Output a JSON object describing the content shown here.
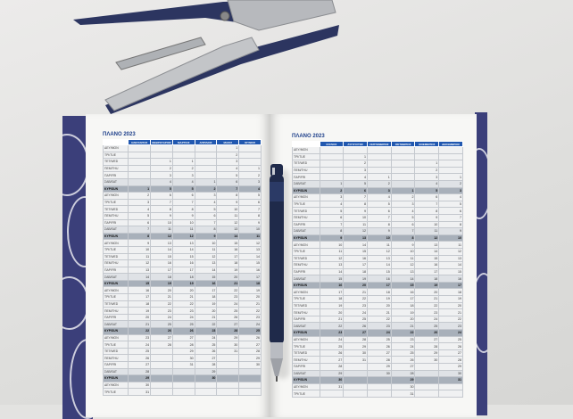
{
  "planner": {
    "left_title": "ΠΛΑΝΟ 2023",
    "right_title": "ΠΛΑΝΟ 2023",
    "day_labels": [
      "ΔΕΥ/MON",
      "ΤΡΙ/TUE",
      "ΤΕΤ/WED",
      "ΠΕΜ/THU",
      "ΠΑΡ/FRI",
      "ΣΑΒ/SAT",
      "ΚΥΡ/SUN"
    ],
    "left_months": [
      {
        "name": "ΙΑΝΟΥΑΡΙΟΣ",
        "days": [
          null,
          null,
          null,
          null,
          null,
          null,
          1,
          2,
          3,
          4,
          5,
          6,
          7,
          8,
          9,
          10,
          11,
          12,
          13,
          14,
          15,
          16,
          17,
          18,
          19,
          20,
          21,
          22,
          23,
          24,
          25,
          26,
          27,
          28,
          29,
          30,
          31
        ]
      },
      {
        "name": "ΦΕΒΡΟΥΑΡΙΟΣ",
        "days": [
          null,
          null,
          1,
          2,
          3,
          4,
          5,
          6,
          7,
          8,
          9,
          10,
          11,
          12,
          13,
          14,
          15,
          16,
          17,
          18,
          19,
          20,
          21,
          22,
          23,
          24,
          25,
          26,
          27,
          28
        ]
      },
      {
        "name": "ΜΑΡΤΙΟΣ",
        "days": [
          null,
          null,
          1,
          2,
          3,
          4,
          5,
          6,
          7,
          8,
          9,
          10,
          11,
          12,
          13,
          14,
          15,
          16,
          17,
          18,
          19,
          20,
          21,
          22,
          23,
          24,
          25,
          26,
          27,
          28,
          29,
          30,
          31
        ]
      },
      {
        "name": "ΑΠΡΙΛΙΟΣ",
        "days": [
          null,
          null,
          null,
          null,
          null,
          1,
          2,
          3,
          4,
          5,
          6,
          7,
          8,
          9,
          10,
          11,
          12,
          13,
          14,
          15,
          16,
          17,
          18,
          19,
          20,
          21,
          22,
          23,
          24,
          25,
          26,
          27,
          28,
          29,
          30
        ]
      },
      {
        "name": "ΜΑΙΟΣ",
        "days": [
          1,
          2,
          3,
          4,
          5,
          6,
          7,
          8,
          9,
          10,
          11,
          12,
          13,
          14,
          15,
          16,
          17,
          18,
          19,
          20,
          21,
          22,
          23,
          24,
          25,
          26,
          27,
          28,
          29,
          30,
          31
        ]
      },
      {
        "name": "ΙΟΥΝΙΟΣ",
        "days": [
          null,
          null,
          null,
          1,
          2,
          3,
          4,
          5,
          6,
          7,
          8,
          9,
          10,
          11,
          12,
          13,
          14,
          15,
          16,
          17,
          18,
          19,
          20,
          21,
          22,
          23,
          24,
          25,
          26,
          27,
          28,
          29,
          30
        ]
      }
    ],
    "right_months": [
      {
        "name": "ΙΟΥΛΙΟΣ",
        "days": [
          null,
          null,
          null,
          null,
          null,
          1,
          2,
          3,
          4,
          5,
          6,
          7,
          8,
          9,
          10,
          11,
          12,
          13,
          14,
          15,
          16,
          17,
          18,
          19,
          20,
          21,
          22,
          23,
          24,
          25,
          26,
          27,
          28,
          29,
          30,
          31
        ]
      },
      {
        "name": "ΑΥΓΟΥΣΤΟΣ",
        "days": [
          null,
          1,
          2,
          3,
          4,
          5,
          6,
          7,
          8,
          9,
          10,
          11,
          12,
          13,
          14,
          15,
          16,
          17,
          18,
          19,
          20,
          21,
          22,
          23,
          24,
          25,
          26,
          27,
          28,
          29,
          30,
          31
        ]
      },
      {
        "name": "ΣΕΠΤΕΜΒΡΙΟΣ",
        "days": [
          null,
          null,
          null,
          null,
          1,
          2,
          3,
          4,
          5,
          6,
          7,
          8,
          9,
          10,
          11,
          12,
          13,
          14,
          15,
          16,
          17,
          18,
          19,
          20,
          21,
          22,
          23,
          24,
          25,
          26,
          27,
          28,
          29,
          30
        ]
      },
      {
        "name": "ΟΚΤΩΒΡΙΟΣ",
        "days": [
          null,
          null,
          null,
          null,
          null,
          null,
          1,
          2,
          3,
          4,
          5,
          6,
          7,
          8,
          9,
          10,
          11,
          12,
          13,
          14,
          15,
          16,
          17,
          18,
          19,
          20,
          21,
          22,
          23,
          24,
          25,
          26,
          27,
          28,
          29,
          30,
          31
        ]
      },
      {
        "name": "ΝΟΕΜΒΡΙΟΣ",
        "days": [
          null,
          null,
          1,
          2,
          3,
          4,
          5,
          6,
          7,
          8,
          9,
          10,
          11,
          12,
          13,
          14,
          15,
          16,
          17,
          18,
          19,
          20,
          21,
          22,
          23,
          24,
          25,
          26,
          27,
          28,
          29,
          30
        ]
      },
      {
        "name": "ΔΕΚΕΜΒΡΙΟΣ",
        "days": [
          null,
          null,
          null,
          null,
          1,
          2,
          3,
          4,
          5,
          6,
          7,
          8,
          9,
          10,
          11,
          12,
          13,
          14,
          15,
          16,
          17,
          18,
          19,
          20,
          21,
          22,
          23,
          24,
          25,
          26,
          27,
          28,
          29,
          30,
          31
        ]
      }
    ]
  },
  "colors": {
    "header_blue": "#2158b0",
    "cover": "#3b3f7a",
    "stapler_blue": "#2c3560",
    "pen": "#1f2a4a"
  }
}
